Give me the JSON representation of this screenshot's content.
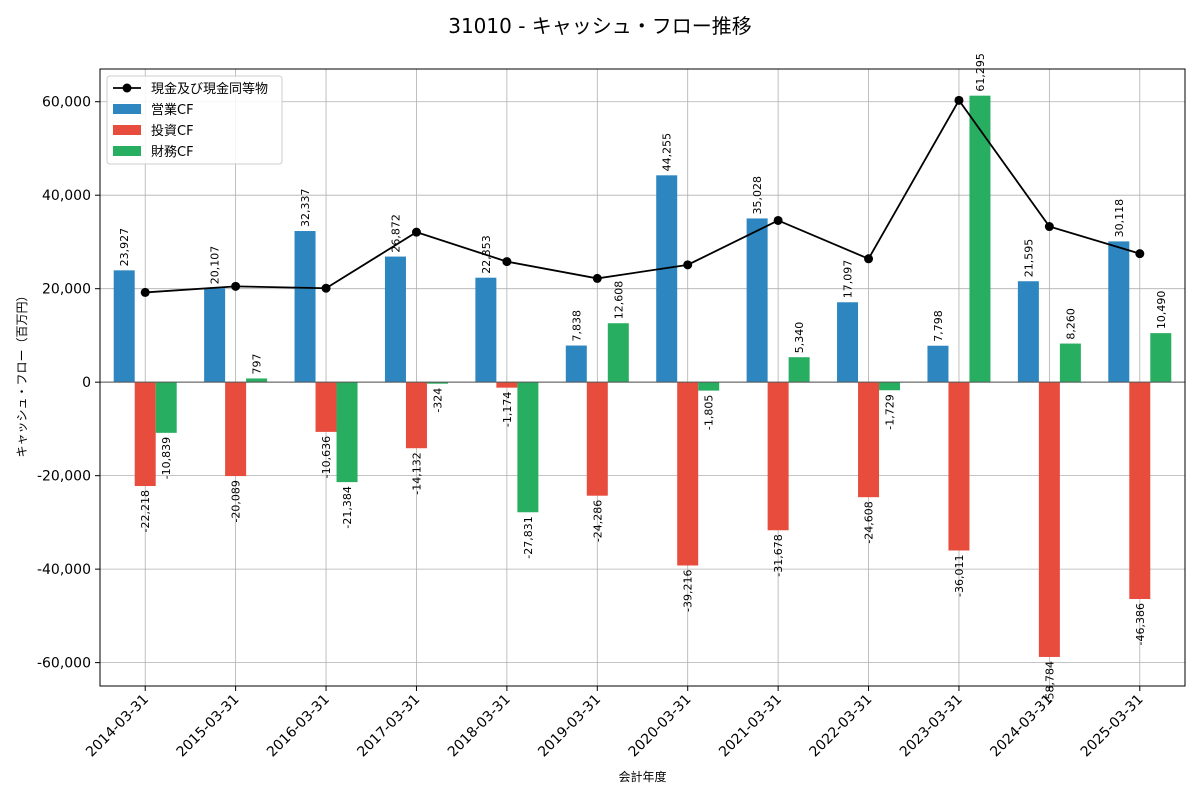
{
  "chart_data": {
    "type": "bar",
    "title": "31010 - キャッシュ・フロー推移",
    "xlabel": "会計年度",
    "ylabel": "キャッシュ・フロー（百万円）",
    "categories": [
      "2014-03-31",
      "2015-03-31",
      "2016-03-31",
      "2017-03-31",
      "2018-03-31",
      "2019-03-31",
      "2020-03-31",
      "2021-03-31",
      "2022-03-31",
      "2023-03-31",
      "2024-03-31",
      "2025-03-31"
    ],
    "series": [
      {
        "name": "営業CF",
        "kind": "bar",
        "color": "#2e86c1",
        "values": [
          23927,
          20107,
          32337,
          26872,
          22353,
          7838,
          44255,
          35028,
          17097,
          7798,
          21595,
          30118
        ],
        "labels": [
          "23,927",
          "20,107",
          "32,337",
          "26,872",
          "22,353",
          "7,838",
          "44,255",
          "35,028",
          "17,097",
          "7,798",
          "21,595",
          "30,118"
        ]
      },
      {
        "name": "投資CF",
        "kind": "bar",
        "color": "#e74c3c",
        "values": [
          -22218,
          -20089,
          -10636,
          -14132,
          -1174,
          -24286,
          -39216,
          -31678,
          -24608,
          -36011,
          -58784,
          -46386
        ],
        "labels": [
          "-22,218",
          "-20,089",
          "-10,636",
          "-14,132",
          "-1,174",
          "-24,286",
          "-39,216",
          "-31,678",
          "-24,608",
          "-36,011",
          "-58,784",
          "-46,386"
        ]
      },
      {
        "name": "財務CF",
        "kind": "bar",
        "color": "#27ae60",
        "values": [
          -10839,
          797,
          -21384,
          -324,
          -27831,
          12608,
          -1805,
          5340,
          -1729,
          61295,
          8260,
          10490
        ],
        "labels": [
          "-10,839",
          "797",
          "-21,384",
          "-324",
          "-27,831",
          "12,608",
          "-1,805",
          "5,340",
          "-1,729",
          "61,295",
          "8,260",
          "10,490"
        ]
      },
      {
        "name": "現金及び現金同等物",
        "kind": "line",
        "color": "#000000",
        "values": [
          19200,
          20500,
          20100,
          32100,
          25800,
          22200,
          25100,
          34600,
          26400,
          60300,
          33300,
          27500
        ]
      }
    ],
    "legend_order": [
      "現金及び現金同等物",
      "営業CF",
      "投資CF",
      "財務CF"
    ],
    "ylim": [
      -65000,
      67000
    ],
    "yticks": [
      -60000,
      -40000,
      -20000,
      0,
      20000,
      40000,
      60000
    ],
    "ytick_labels": [
      "-60,000",
      "-40,000",
      "-20,000",
      "0",
      "20,000",
      "40,000",
      "60,000"
    ],
    "grid": true,
    "legend_position": "top-left"
  }
}
